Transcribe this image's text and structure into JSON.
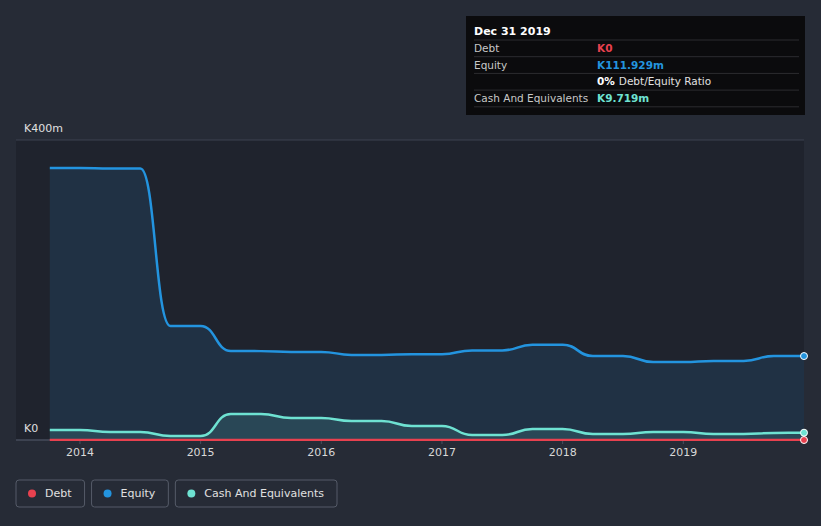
{
  "chart_data": {
    "type": "line",
    "x": [
      2013.75,
      2014.0,
      2014.25,
      2014.5,
      2014.75,
      2015.0,
      2015.25,
      2015.5,
      2015.75,
      2016.0,
      2016.25,
      2016.5,
      2016.75,
      2017.0,
      2017.25,
      2017.5,
      2017.75,
      2018.0,
      2018.25,
      2018.5,
      2018.75,
      2019.0,
      2019.25,
      2019.5,
      2019.75,
      2020.0
    ],
    "series": [
      {
        "name": "Debt",
        "color": "#e8414f",
        "type": "line",
        "marker": "end",
        "values": [
          0,
          0,
          0,
          0,
          0,
          0,
          0,
          0,
          0,
          0,
          0,
          0,
          0,
          0,
          0,
          0,
          0,
          0,
          0,
          0,
          0,
          0,
          0,
          0,
          0,
          0
        ]
      },
      {
        "name": "Equity",
        "color": "#2394df",
        "type": "area",
        "marker": "end",
        "values": [
          362.7,
          362.7,
          362,
          362,
          152,
          152,
          118.7,
          118.5,
          117.5,
          117.5,
          113.5,
          113.5,
          114.5,
          114.5,
          119.5,
          119.5,
          127,
          127,
          112,
          112,
          104,
          104,
          105.5,
          105.5,
          111.9,
          111.929
        ]
      },
      {
        "name": "Cash And Equivalents",
        "color": "#6ee2d2",
        "type": "area",
        "marker": "end",
        "values": [
          13.3,
          13.3,
          10.7,
          10.7,
          5.3,
          5.3,
          34.7,
          34.7,
          29.3,
          29.3,
          25.3,
          25.3,
          18.7,
          18.7,
          6.7,
          6.7,
          14.7,
          14.7,
          8,
          8,
          10.7,
          10.7,
          8,
          8,
          9.3,
          9.719
        ]
      }
    ],
    "xlim": [
      2013.47,
      2020.0
    ],
    "xticks": [
      2014,
      2015,
      2016,
      2017,
      2018,
      2019
    ],
    "ylim": [
      0,
      400
    ],
    "yticks": [
      {
        "value": 0,
        "label": "K0"
      },
      {
        "value": 400,
        "label": "K400m"
      }
    ],
    "grid": true,
    "legend": "bottom",
    "tooltip": {
      "title": "Dec 31 2019",
      "rows": [
        {
          "label": "Debt",
          "value": "K0",
          "color": "#e8414f"
        },
        {
          "label": "Equity",
          "value": "K111.929m",
          "color": "#2394df"
        },
        {
          "value": "0%",
          "text": "Debt/Equity Ratio",
          "color": "#ffffff"
        },
        {
          "label": "Cash And Equivalents",
          "value": "K9.719m",
          "color": "#6ee2d2"
        }
      ]
    }
  }
}
